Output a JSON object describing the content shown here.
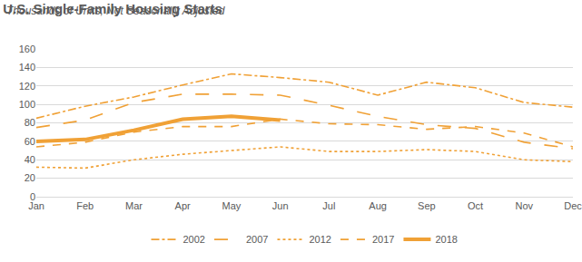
{
  "chart_data": {
    "type": "line",
    "title": "U.S. Single-Family Housing Starts",
    "subtitle": "Thousands of Units, Not Seasonally Adjusted",
    "categories": [
      "Jan",
      "Feb",
      "Mar",
      "Apr",
      "May",
      "Jun",
      "Jul",
      "Aug",
      "Sep",
      "Oct",
      "Nov",
      "Dec"
    ],
    "series": [
      {
        "name": "2002",
        "color": "#f0a136",
        "line_style": "dashdot",
        "values": [
          85,
          98,
          108,
          121,
          133,
          129,
          124,
          110,
          124,
          118,
          102,
          97
        ]
      },
      {
        "name": "2007",
        "color": "#f0a136",
        "line_style": "longdash",
        "values": [
          75,
          83,
          102,
          111,
          111,
          110,
          99,
          87,
          78,
          74,
          59,
          52
        ]
      },
      {
        "name": "2012",
        "color": "#f0a136",
        "line_style": "dot",
        "values": [
          32,
          31,
          40,
          46,
          50,
          54,
          49,
          49,
          51,
          49,
          40,
          38
        ]
      },
      {
        "name": "2017",
        "color": "#f0a136",
        "line_style": "dash",
        "values": [
          54,
          59,
          70,
          76,
          76,
          84,
          79,
          78,
          73,
          76,
          69,
          54
        ]
      },
      {
        "name": "2018",
        "color": "#f0a136",
        "line_style": "solid",
        "values": [
          60,
          62,
          72,
          84,
          87,
          83,
          null,
          null,
          null,
          null,
          null,
          null
        ]
      }
    ],
    "ylim": [
      0,
      160
    ],
    "yticks": [
      0,
      20,
      40,
      60,
      80,
      100,
      120,
      140,
      160
    ],
    "grid": true,
    "legend": "bottom"
  }
}
